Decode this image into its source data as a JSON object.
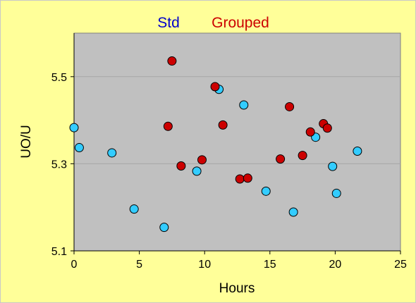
{
  "colors": {
    "figure_background": "#ffff99",
    "plot_background": "#c0c0c0",
    "gridline": "#a6a6a6",
    "std_fill": "#33ccff",
    "std_label": "#0000cc",
    "grouped_fill": "#cc0000",
    "grouped_label": "#cc0000",
    "marker_edge": "#000000"
  },
  "chart_data": {
    "type": "scatter",
    "title": "",
    "xlabel": "Hours",
    "ylabel": "UO/U",
    "xlim": [
      0,
      25
    ],
    "ylim": [
      5.1,
      5.6
    ],
    "x_ticks": [
      0,
      5,
      10,
      15,
      20,
      25
    ],
    "x_tick_labels": [
      "0",
      "5",
      "10",
      "15",
      "20",
      "25"
    ],
    "y_ticks": [
      5.1,
      5.3,
      5.5
    ],
    "y_tick_labels": [
      "5.1",
      "5.3",
      "5.5"
    ],
    "grid": "horizontal gridlines at 5.3 and 5.5",
    "legend": "top-center, horizontal",
    "series": [
      {
        "name": "Std",
        "color": "#33ccff",
        "points": [
          {
            "x": 0.0,
            "y": 5.383
          },
          {
            "x": 0.4,
            "y": 5.337
          },
          {
            "x": 2.9,
            "y": 5.325
          },
          {
            "x": 4.6,
            "y": 5.196
          },
          {
            "x": 6.9,
            "y": 5.154
          },
          {
            "x": 9.4,
            "y": 5.283
          },
          {
            "x": 11.1,
            "y": 5.471
          },
          {
            "x": 13.0,
            "y": 5.435
          },
          {
            "x": 14.7,
            "y": 5.237
          },
          {
            "x": 16.8,
            "y": 5.189
          },
          {
            "x": 18.5,
            "y": 5.361
          },
          {
            "x": 19.8,
            "y": 5.294
          },
          {
            "x": 20.1,
            "y": 5.232
          },
          {
            "x": 21.7,
            "y": 5.329
          }
        ]
      },
      {
        "name": "Grouped",
        "color": "#cc0000",
        "points": [
          {
            "x": 7.2,
            "y": 5.386
          },
          {
            "x": 7.5,
            "y": 5.536
          },
          {
            "x": 8.2,
            "y": 5.295
          },
          {
            "x": 9.8,
            "y": 5.309
          },
          {
            "x": 10.8,
            "y": 5.477
          },
          {
            "x": 11.4,
            "y": 5.389
          },
          {
            "x": 12.7,
            "y": 5.265
          },
          {
            "x": 13.3,
            "y": 5.267
          },
          {
            "x": 15.8,
            "y": 5.311
          },
          {
            "x": 16.5,
            "y": 5.431
          },
          {
            "x": 17.5,
            "y": 5.319
          },
          {
            "x": 18.1,
            "y": 5.373
          },
          {
            "x": 19.1,
            "y": 5.392
          },
          {
            "x": 19.4,
            "y": 5.382
          }
        ]
      }
    ]
  }
}
